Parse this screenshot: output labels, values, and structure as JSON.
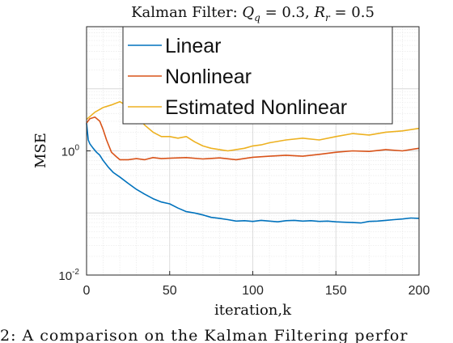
{
  "chart_data": {
    "type": "line",
    "title": "Kalman Filter: Q_q = 0.3, R_r = 0.5",
    "xlabel": "iteration,k",
    "ylabel": "MSE",
    "xlim": [
      0,
      200
    ],
    "ylim": [
      0.01,
      100
    ],
    "yscale": "log",
    "xticks": [
      0,
      50,
      100,
      150,
      200
    ],
    "grid": true,
    "legend_placement": "top-left",
    "series": [
      {
        "name": "Linear",
        "color": "#0072BD",
        "x": [
          0,
          1,
          2,
          4,
          6,
          8,
          10,
          13,
          16,
          20,
          25,
          30,
          35,
          40,
          45,
          50,
          55,
          60,
          65,
          70,
          75,
          80,
          85,
          90,
          95,
          100,
          105,
          110,
          115,
          120,
          125,
          130,
          135,
          140,
          145,
          150,
          155,
          160,
          165,
          170,
          175,
          180,
          185,
          190,
          195,
          200
        ],
        "y": [
          2.8,
          1.5,
          1.3,
          1.1,
          0.95,
          0.85,
          0.7,
          0.55,
          0.45,
          0.38,
          0.3,
          0.24,
          0.2,
          0.17,
          0.15,
          0.14,
          0.12,
          0.105,
          0.1,
          0.093,
          0.085,
          0.082,
          0.078,
          0.074,
          0.075,
          0.073,
          0.076,
          0.074,
          0.072,
          0.075,
          0.076,
          0.074,
          0.075,
          0.073,
          0.074,
          0.072,
          0.071,
          0.07,
          0.069,
          0.073,
          0.074,
          0.076,
          0.078,
          0.08,
          0.083,
          0.082
        ]
      },
      {
        "name": "Nonlinear",
        "color": "#D95319",
        "x": [
          0,
          2,
          5,
          8,
          10,
          12,
          15,
          18,
          20,
          25,
          30,
          35,
          40,
          45,
          50,
          60,
          70,
          80,
          90,
          100,
          110,
          120,
          130,
          140,
          150,
          160,
          170,
          180,
          190,
          200
        ],
        "y": [
          2.8,
          3.3,
          3.5,
          3.0,
          2.2,
          1.5,
          0.95,
          0.8,
          0.72,
          0.72,
          0.75,
          0.72,
          0.78,
          0.75,
          0.76,
          0.78,
          0.74,
          0.77,
          0.72,
          0.79,
          0.82,
          0.85,
          0.82,
          0.88,
          0.95,
          1.0,
          0.98,
          1.05,
          1.0,
          1.1
        ]
      },
      {
        "name": "Estimated Nonlinear",
        "color": "#EDB120",
        "x": [
          0,
          5,
          10,
          15,
          20,
          25,
          30,
          35,
          40,
          45,
          50,
          55,
          60,
          65,
          70,
          75,
          80,
          85,
          90,
          95,
          100,
          105,
          110,
          120,
          130,
          140,
          150,
          160,
          170,
          180,
          190,
          200
        ],
        "y": [
          3.2,
          4.2,
          5.0,
          5.5,
          6.2,
          5.2,
          3.8,
          2.6,
          2.0,
          1.7,
          1.7,
          1.6,
          1.7,
          1.4,
          1.2,
          1.1,
          1.05,
          1.0,
          1.05,
          1.1,
          1.2,
          1.25,
          1.35,
          1.5,
          1.6,
          1.5,
          1.7,
          1.9,
          1.8,
          2.0,
          2.1,
          2.3
        ]
      }
    ]
  },
  "caption": "2: A comparison on the Kalman Filtering perfor",
  "ytick_labels": [
    {
      "value": 0.01,
      "base": "10",
      "exp": "-2"
    },
    {
      "value": 1,
      "base": "10",
      "exp": "0"
    }
  ]
}
